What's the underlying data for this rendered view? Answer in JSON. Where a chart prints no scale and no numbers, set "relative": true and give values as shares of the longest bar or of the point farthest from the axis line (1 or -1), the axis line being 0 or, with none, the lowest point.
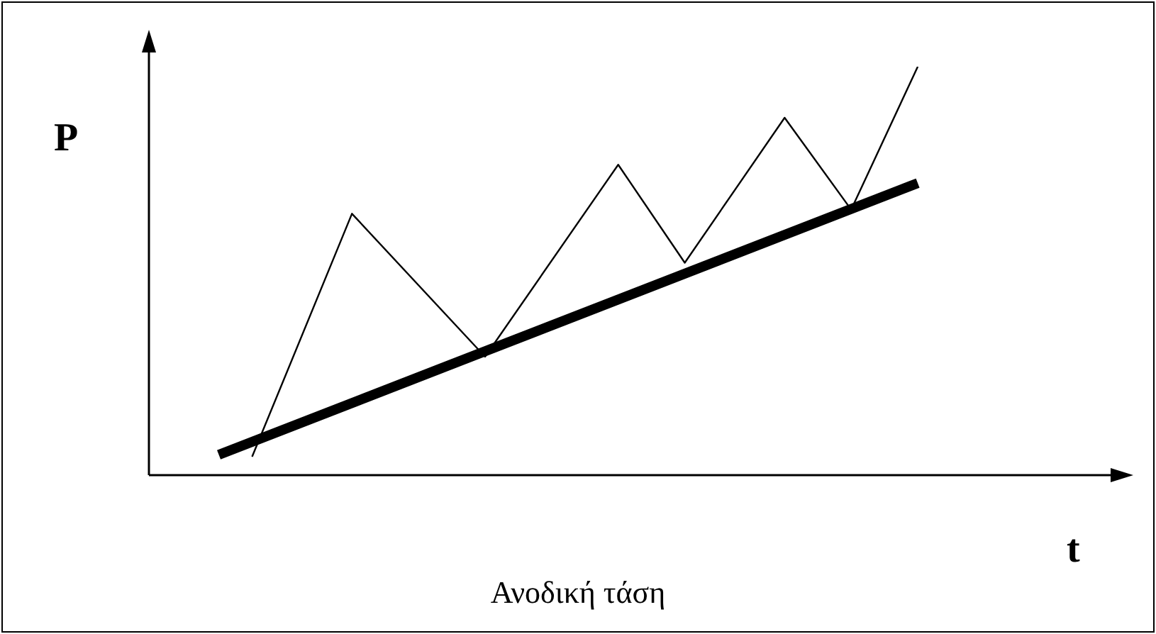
{
  "chart_data": {
    "type": "line",
    "relative": true,
    "xlabel": "t",
    "ylabel": "P",
    "annotations": [
      "Ανοδική τάση"
    ],
    "legend": false,
    "marker": "none",
    "line_style": "solid",
    "categories": [
      null,
      null,
      null,
      null,
      null,
      null,
      null,
      null,
      null,
      null,
      null,
      null,
      null,
      null,
      null,
      null,
      null,
      null,
      null,
      null,
      null,
      null
    ],
    "series": [
      {
        "color": "#000000",
        "values": [
          null,
          0.045,
          null,
          null,
          0.64,
          null,
          null,
          null,
          0.29,
          null,
          null,
          null,
          0.76,
          null,
          0.52,
          null,
          null,
          0.875,
          null,
          0.65,
          null,
          1.0
        ]
      },
      {
        "color": "#000000",
        "values": [
          0.05,
          null,
          null,
          null,
          null,
          null,
          null,
          null,
          null,
          null,
          null,
          null,
          null,
          null,
          null,
          null,
          null,
          null,
          null,
          null,
          null,
          0.715
        ]
      }
    ]
  }
}
